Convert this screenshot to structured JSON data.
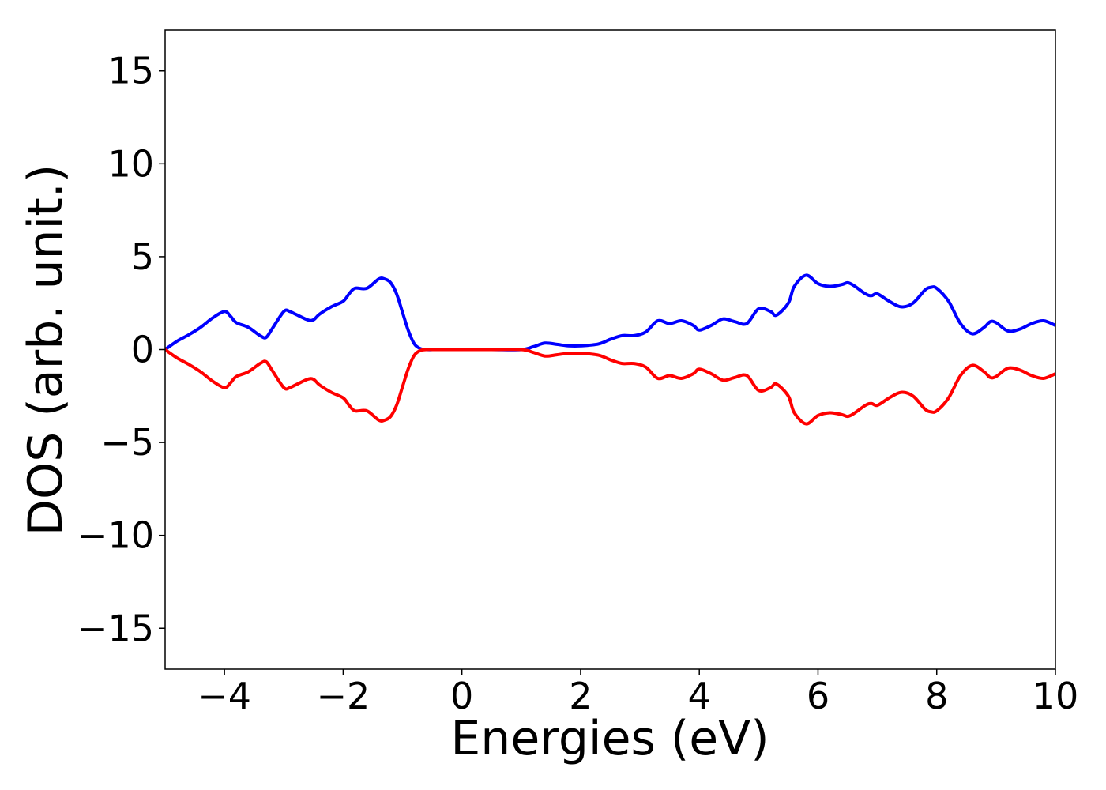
{
  "chart_data": {
    "type": "line",
    "title": "",
    "xlabel": "Energies (eV)",
    "ylabel": "DOS (arb. unit.)",
    "xlim": [
      -5,
      10
    ],
    "ylim": [
      -17.2,
      17.2
    ],
    "xticks": [
      -4,
      -2,
      0,
      2,
      4,
      6,
      8,
      10
    ],
    "xtick_labels": [
      "−4",
      "−2",
      "0",
      "2",
      "4",
      "6",
      "8",
      "10"
    ],
    "yticks": [
      15,
      10,
      5,
      0,
      -5,
      -10,
      -15
    ],
    "ytick_labels": [
      "15",
      "10",
      "5",
      "0",
      "−5",
      "−10",
      "−15"
    ],
    "grid": false,
    "legend": "none",
    "colors": {
      "spin_up": "#0000ff",
      "spin_down": "#ff0000",
      "axes": "#000000"
    },
    "series": [
      {
        "color": "#0000ff",
        "x": [
          -5.0,
          -4.8,
          -4.6,
          -4.4,
          -4.2,
          -4.0,
          -3.9,
          -3.8,
          -3.6,
          -3.4,
          -3.3,
          -3.2,
          -3.0,
          -2.9,
          -2.8,
          -2.6,
          -2.5,
          -2.4,
          -2.2,
          -2.0,
          -1.9,
          -1.8,
          -1.6,
          -1.4,
          -1.3,
          -1.2,
          -1.1,
          -1.0,
          -0.9,
          -0.8,
          -0.7,
          -0.6,
          -0.4,
          0.0,
          0.5,
          1.0,
          1.2,
          1.4,
          1.6,
          1.8,
          2.0,
          2.3,
          2.5,
          2.7,
          2.9,
          3.1,
          3.3,
          3.5,
          3.7,
          3.9,
          4.0,
          4.2,
          4.4,
          4.6,
          4.8,
          5.0,
          5.2,
          5.3,
          5.5,
          5.6,
          5.8,
          6.0,
          6.2,
          6.4,
          6.5,
          6.6,
          6.8,
          6.9,
          7.0,
          7.2,
          7.4,
          7.6,
          7.8,
          7.9,
          8.0,
          8.2,
          8.4,
          8.6,
          8.8,
          8.9,
          9.0,
          9.2,
          9.4,
          9.6,
          9.8,
          10.0
        ],
        "values": [
          0.0,
          0.45,
          0.8,
          1.2,
          1.7,
          2.05,
          1.8,
          1.45,
          1.2,
          0.75,
          0.65,
          1.1,
          2.05,
          2.05,
          1.9,
          1.6,
          1.6,
          1.9,
          2.3,
          2.6,
          3.0,
          3.3,
          3.3,
          3.8,
          3.8,
          3.6,
          3.0,
          2.0,
          1.0,
          0.3,
          0.05,
          0.0,
          0.0,
          0.0,
          0.0,
          0.0,
          0.15,
          0.35,
          0.28,
          0.2,
          0.2,
          0.3,
          0.55,
          0.75,
          0.75,
          0.95,
          1.55,
          1.4,
          1.55,
          1.3,
          1.05,
          1.3,
          1.65,
          1.5,
          1.4,
          2.2,
          2.05,
          1.85,
          2.5,
          3.4,
          4.0,
          3.55,
          3.4,
          3.5,
          3.6,
          3.45,
          3.0,
          2.9,
          3.0,
          2.6,
          2.3,
          2.5,
          3.2,
          3.35,
          3.3,
          2.6,
          1.4,
          0.85,
          1.2,
          1.5,
          1.45,
          1.0,
          1.1,
          1.4,
          1.55,
          1.3
        ]
      },
      {
        "color": "#ff0000",
        "x": [
          -5.0,
          -4.8,
          -4.6,
          -4.4,
          -4.2,
          -4.0,
          -3.9,
          -3.8,
          -3.6,
          -3.4,
          -3.3,
          -3.2,
          -3.0,
          -2.9,
          -2.8,
          -2.6,
          -2.5,
          -2.4,
          -2.2,
          -2.0,
          -1.9,
          -1.8,
          -1.6,
          -1.4,
          -1.3,
          -1.2,
          -1.1,
          -1.0,
          -0.9,
          -0.8,
          -0.7,
          -0.6,
          -0.4,
          0.0,
          0.5,
          1.0,
          1.2,
          1.4,
          1.6,
          1.8,
          2.0,
          2.3,
          2.5,
          2.7,
          2.9,
          3.1,
          3.3,
          3.5,
          3.7,
          3.9,
          4.0,
          4.2,
          4.4,
          4.6,
          4.8,
          5.0,
          5.2,
          5.3,
          5.5,
          5.6,
          5.8,
          6.0,
          6.2,
          6.4,
          6.5,
          6.6,
          6.8,
          6.9,
          7.0,
          7.2,
          7.4,
          7.6,
          7.8,
          7.9,
          8.0,
          8.2,
          8.4,
          8.6,
          8.8,
          8.9,
          9.0,
          9.2,
          9.4,
          9.6,
          9.8,
          10.0
        ],
        "values": [
          0.0,
          -0.45,
          -0.8,
          -1.2,
          -1.7,
          -2.05,
          -1.8,
          -1.45,
          -1.2,
          -0.75,
          -0.65,
          -1.1,
          -2.05,
          -2.05,
          -1.9,
          -1.6,
          -1.6,
          -1.9,
          -2.3,
          -2.6,
          -3.0,
          -3.3,
          -3.3,
          -3.8,
          -3.8,
          -3.6,
          -3.0,
          -2.0,
          -1.0,
          -0.3,
          -0.05,
          0.0,
          0.0,
          0.0,
          0.0,
          0.0,
          -0.15,
          -0.35,
          -0.28,
          -0.2,
          -0.2,
          -0.3,
          -0.55,
          -0.75,
          -0.75,
          -0.95,
          -1.55,
          -1.4,
          -1.55,
          -1.3,
          -1.05,
          -1.3,
          -1.65,
          -1.5,
          -1.4,
          -2.2,
          -2.05,
          -1.85,
          -2.5,
          -3.4,
          -4.0,
          -3.55,
          -3.4,
          -3.5,
          -3.6,
          -3.45,
          -3.0,
          -2.9,
          -3.0,
          -2.6,
          -2.3,
          -2.5,
          -3.2,
          -3.35,
          -3.3,
          -2.6,
          -1.4,
          -0.85,
          -1.2,
          -1.5,
          -1.45,
          -1.0,
          -1.1,
          -1.4,
          -1.55,
          -1.3
        ]
      }
    ]
  }
}
